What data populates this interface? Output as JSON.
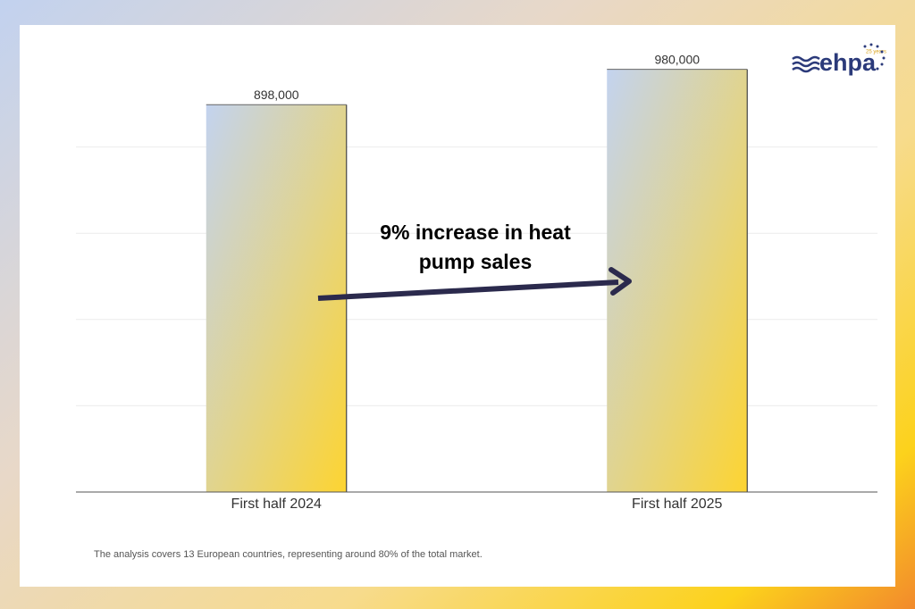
{
  "chart_data": {
    "type": "bar",
    "categories": [
      "First half 2024",
      "First half 2025"
    ],
    "values": [
      898000,
      980000
    ],
    "value_labels": [
      "898,000",
      "980,000"
    ],
    "colors": [
      "#c3d3ef",
      "#fdd431"
    ],
    "ylim": [
      0,
      1000000
    ],
    "yticks": [
      0,
      200000,
      400000,
      600000,
      800000
    ],
    "grid": true,
    "annotation": "9% increase in heat pump sales",
    "footnote": "The analysis covers 13 European countries, representing around 80% of the total market."
  },
  "logo": {
    "text": "ehpa",
    "badge": "25 years"
  }
}
